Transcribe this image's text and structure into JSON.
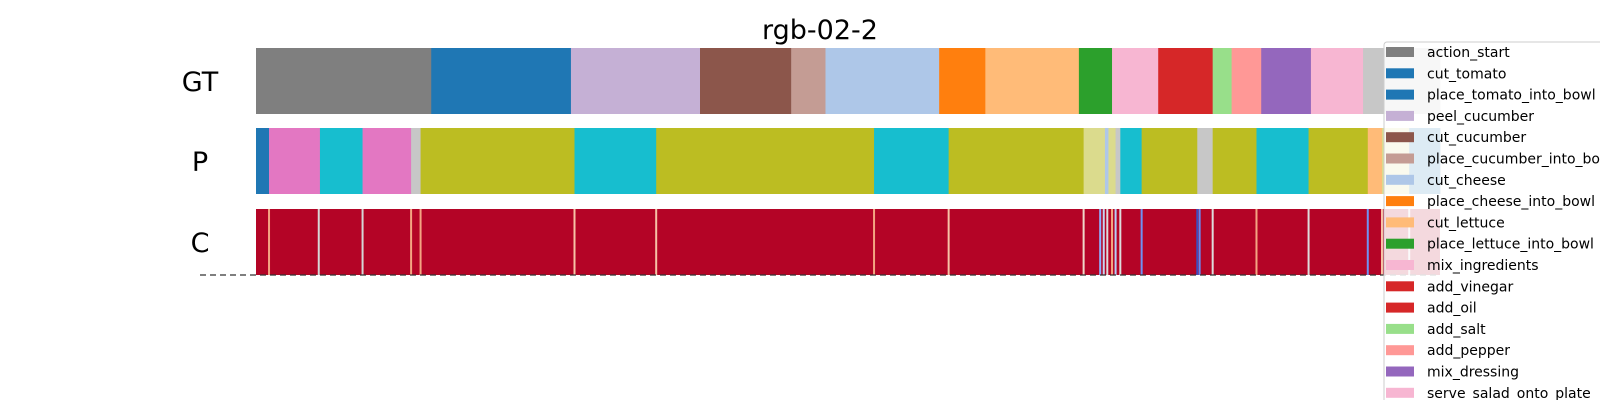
{
  "chart_data": {
    "type": "segmentation-timeline",
    "title": "rgb-02-2",
    "x_range": [
      0,
      1
    ],
    "rows": [
      {
        "label": "GT",
        "segments": [
          {
            "start": 0.0,
            "end": 0.148,
            "color": "#7f7f7f"
          },
          {
            "start": 0.148,
            "end": 0.266,
            "color": "#1f77b4"
          },
          {
            "start": 0.266,
            "end": 0.375,
            "color": "#c5b0d5"
          },
          {
            "start": 0.375,
            "end": 0.452,
            "color": "#8c564b"
          },
          {
            "start": 0.452,
            "end": 0.481,
            "color": "#c49c94"
          },
          {
            "start": 0.481,
            "end": 0.577,
            "color": "#aec7e8"
          },
          {
            "start": 0.577,
            "end": 0.616,
            "color": "#ff7f0e"
          },
          {
            "start": 0.616,
            "end": 0.695,
            "color": "#ffbb78"
          },
          {
            "start": 0.695,
            "end": 0.723,
            "color": "#2ca02c"
          },
          {
            "start": 0.723,
            "end": 0.762,
            "color": "#f7b6d2"
          },
          {
            "start": 0.762,
            "end": 0.808,
            "color": "#d62728"
          },
          {
            "start": 0.808,
            "end": 0.824,
            "color": "#98df8a"
          },
          {
            "start": 0.824,
            "end": 0.849,
            "color": "#ff9896"
          },
          {
            "start": 0.849,
            "end": 0.891,
            "color": "#9467bd"
          },
          {
            "start": 0.891,
            "end": 0.935,
            "color": "#f7b6d2"
          },
          {
            "start": 0.935,
            "end": 1.0,
            "color": "#c7c7c7"
          }
        ]
      },
      {
        "label": "P",
        "segments": [
          {
            "start": 0.0,
            "end": 0.011,
            "color": "#1f77b4"
          },
          {
            "start": 0.011,
            "end": 0.054,
            "color": "#e377c2"
          },
          {
            "start": 0.054,
            "end": 0.09,
            "color": "#17becf"
          },
          {
            "start": 0.09,
            "end": 0.131,
            "color": "#e377c2"
          },
          {
            "start": 0.131,
            "end": 0.139,
            "color": "#c7c7c7"
          },
          {
            "start": 0.139,
            "end": 0.269,
            "color": "#bcbd22"
          },
          {
            "start": 0.269,
            "end": 0.338,
            "color": "#17becf"
          },
          {
            "start": 0.338,
            "end": 0.522,
            "color": "#bcbd22"
          },
          {
            "start": 0.522,
            "end": 0.585,
            "color": "#17becf"
          },
          {
            "start": 0.585,
            "end": 0.699,
            "color": "#bcbd22"
          },
          {
            "start": 0.699,
            "end": 0.717,
            "color": "#dbdb8d"
          },
          {
            "start": 0.717,
            "end": 0.72,
            "color": "#aec7e8"
          },
          {
            "start": 0.72,
            "end": 0.726,
            "color": "#dbdb8d"
          },
          {
            "start": 0.726,
            "end": 0.73,
            "color": "#c7c7c7"
          },
          {
            "start": 0.73,
            "end": 0.748,
            "color": "#17becf"
          },
          {
            "start": 0.748,
            "end": 0.795,
            "color": "#bcbd22"
          },
          {
            "start": 0.795,
            "end": 0.808,
            "color": "#c7c7c7"
          },
          {
            "start": 0.808,
            "end": 0.845,
            "color": "#bcbd22"
          },
          {
            "start": 0.845,
            "end": 0.889,
            "color": "#17becf"
          },
          {
            "start": 0.889,
            "end": 0.939,
            "color": "#bcbd22"
          },
          {
            "start": 0.939,
            "end": 0.951,
            "color": "#ffbb78"
          },
          {
            "start": 0.951,
            "end": 0.974,
            "color": "#dbdb8d"
          },
          {
            "start": 0.974,
            "end": 1.0,
            "color": "#1f77b4"
          }
        ]
      },
      {
        "label": "C",
        "background": "#b40426",
        "marks": [
          {
            "at": 0.011,
            "color": "#f4a582"
          },
          {
            "at": 0.053,
            "color": "#d6d6d6"
          },
          {
            "at": 0.09,
            "color": "#d6d6d6"
          },
          {
            "at": 0.131,
            "color": "#f4a582"
          },
          {
            "at": 0.139,
            "color": "#f4a582"
          },
          {
            "at": 0.269,
            "color": "#f7c3a6"
          },
          {
            "at": 0.338,
            "color": "#f7c3a6"
          },
          {
            "at": 0.522,
            "color": "#f4a582"
          },
          {
            "at": 0.585,
            "color": "#f7c3a6"
          },
          {
            "at": 0.699,
            "color": "#f0d8c8"
          },
          {
            "at": 0.713,
            "color": "#8db0fe"
          },
          {
            "at": 0.716,
            "color": "#c5d6f2"
          },
          {
            "at": 0.719,
            "color": "#dddcdc"
          },
          {
            "at": 0.723,
            "color": "#f4a582"
          },
          {
            "at": 0.726,
            "color": "#b7cff9"
          },
          {
            "at": 0.73,
            "color": "#dddcdc"
          },
          {
            "at": 0.748,
            "color": "#6f92f3"
          },
          {
            "at": 0.795,
            "color": "#3b4cc0"
          },
          {
            "at": 0.797,
            "color": "#6788ee"
          },
          {
            "at": 0.808,
            "color": "#dddcdc"
          },
          {
            "at": 0.845,
            "color": "#f4a582"
          },
          {
            "at": 0.889,
            "color": "#dddcdc"
          },
          {
            "at": 0.939,
            "color": "#6f92f3"
          },
          {
            "at": 0.951,
            "color": "#f7c3a6"
          },
          {
            "at": 0.974,
            "color": "#dddcdc"
          }
        ]
      }
    ],
    "legend": {
      "position": "right",
      "entries": [
        {
          "label": "action_start",
          "color": "#7f7f7f"
        },
        {
          "label": "cut_tomato",
          "color": "#1f77b4"
        },
        {
          "label": "place_tomato_into_bowl",
          "color": "#1f77b4"
        },
        {
          "label": "peel_cucumber",
          "color": "#c5b0d5"
        },
        {
          "label": "cut_cucumber",
          "color": "#8c564b"
        },
        {
          "label": "place_cucumber_into_bowl",
          "color": "#c49c94"
        },
        {
          "label": "cut_cheese",
          "color": "#aec7e8"
        },
        {
          "label": "place_cheese_into_bowl",
          "color": "#ff7f0e"
        },
        {
          "label": "cut_lettuce",
          "color": "#ffbb78"
        },
        {
          "label": "place_lettuce_into_bowl",
          "color": "#2ca02c"
        },
        {
          "label": "mix_ingredients",
          "color": "#f7b6d2"
        },
        {
          "label": "add_vinegar",
          "color": "#d62728"
        },
        {
          "label": "add_oil",
          "color": "#d62728"
        },
        {
          "label": "add_salt",
          "color": "#98df8a"
        },
        {
          "label": "add_pepper",
          "color": "#ff9896"
        },
        {
          "label": "mix_dressing",
          "color": "#9467bd"
        },
        {
          "label": "serve_salad_onto_plate",
          "color": "#f7b6d2"
        }
      ]
    }
  }
}
